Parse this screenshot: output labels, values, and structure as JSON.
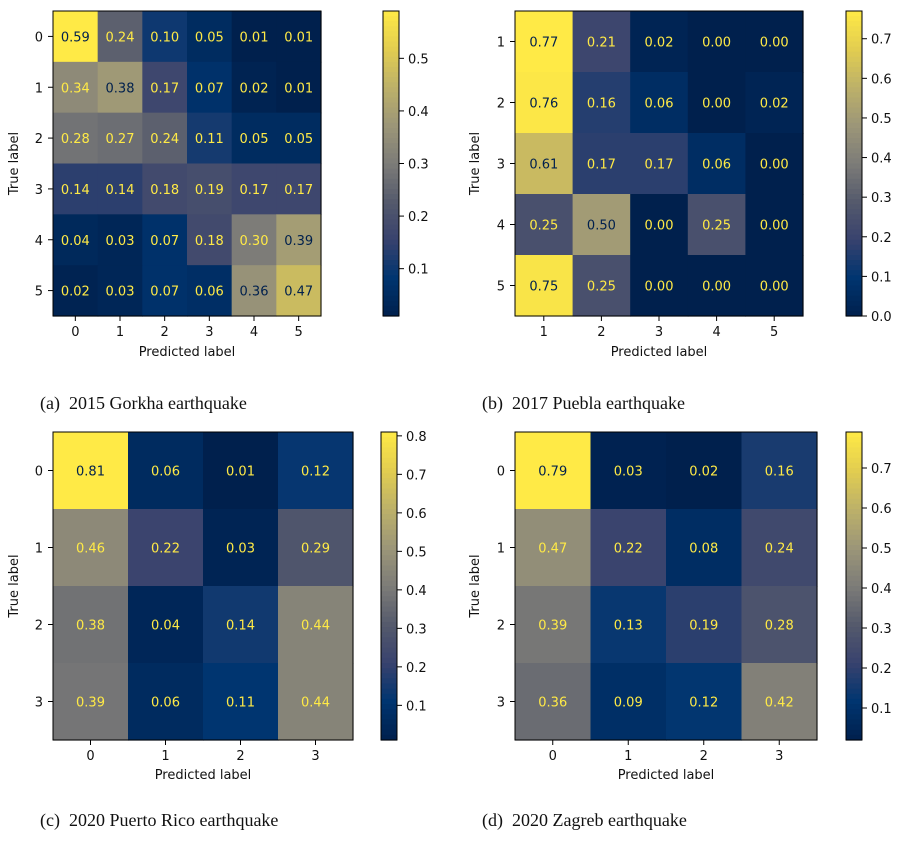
{
  "chart_data": [
    {
      "type": "heatmap",
      "xlabel": "Predicted label",
      "ylabel": "True label",
      "x_ticks": [
        "0",
        "1",
        "2",
        "3",
        "4",
        "5"
      ],
      "y_ticks": [
        "0",
        "1",
        "2",
        "3",
        "4",
        "5"
      ],
      "values": [
        [
          0.59,
          0.24,
          0.1,
          0.05,
          0.01,
          0.01
        ],
        [
          0.34,
          0.38,
          0.17,
          0.07,
          0.02,
          0.01
        ],
        [
          0.28,
          0.27,
          0.24,
          0.11,
          0.05,
          0.05
        ],
        [
          0.14,
          0.14,
          0.18,
          0.19,
          0.17,
          0.17
        ],
        [
          0.04,
          0.03,
          0.07,
          0.18,
          0.3,
          0.39
        ],
        [
          0.02,
          0.03,
          0.07,
          0.06,
          0.36,
          0.47
        ]
      ],
      "cell_labels": [
        [
          "0.59",
          "0.24",
          "0.10",
          "0.05",
          "0.01",
          "0.01"
        ],
        [
          "0.34",
          "0.38",
          "0.17",
          "0.07",
          "0.02",
          "0.01"
        ],
        [
          "0.28",
          "0.27",
          "0.24",
          "0.11",
          "0.05",
          "0.05"
        ],
        [
          "0.14",
          "0.14",
          "0.18",
          "0.19",
          "0.17",
          "0.17"
        ],
        [
          "0.04",
          "0.03",
          "0.07",
          "0.18",
          "0.30",
          "0.39"
        ],
        [
          "0.02",
          "0.03",
          "0.07",
          "0.06",
          "0.36",
          "0.47"
        ]
      ],
      "colorbar": {
        "range": [
          0.01,
          0.59
        ],
        "ticks": [
          0.1,
          0.2,
          0.3,
          0.4,
          0.5
        ],
        "tick_labels": [
          "0.1",
          "0.2",
          "0.3",
          "0.4",
          "0.5"
        ]
      },
      "colormap": "cividis",
      "caption": "(a)  2015 Gorkha earthquake"
    },
    {
      "type": "heatmap",
      "xlabel": "Predicted label",
      "ylabel": "True label",
      "x_ticks": [
        "1",
        "2",
        "3",
        "4",
        "5"
      ],
      "y_ticks": [
        "1",
        "2",
        "3",
        "4",
        "5"
      ],
      "values": [
        [
          0.77,
          0.21,
          0.02,
          0.0,
          0.0
        ],
        [
          0.76,
          0.16,
          0.06,
          0.0,
          0.02
        ],
        [
          0.61,
          0.17,
          0.17,
          0.06,
          0.0
        ],
        [
          0.25,
          0.5,
          0.0,
          0.25,
          0.0
        ],
        [
          0.75,
          0.25,
          0.0,
          0.0,
          0.0
        ]
      ],
      "cell_labels": [
        [
          "0.77",
          "0.21",
          "0.02",
          "0.00",
          "0.00"
        ],
        [
          "0.76",
          "0.16",
          "0.06",
          "0.00",
          "0.02"
        ],
        [
          "0.61",
          "0.17",
          "0.17",
          "0.06",
          "0.00"
        ],
        [
          "0.25",
          "0.50",
          "0.00",
          "0.25",
          "0.00"
        ],
        [
          "0.75",
          "0.25",
          "0.00",
          "0.00",
          "0.00"
        ]
      ],
      "colorbar": {
        "range": [
          0.0,
          0.77
        ],
        "ticks": [
          0.0,
          0.1,
          0.2,
          0.3,
          0.4,
          0.5,
          0.6,
          0.7
        ],
        "tick_labels": [
          "0.0",
          "0.1",
          "0.2",
          "0.3",
          "0.4",
          "0.5",
          "0.6",
          "0.7"
        ]
      },
      "colormap": "cividis",
      "caption": "(b)  2017 Puebla earthquake"
    },
    {
      "type": "heatmap",
      "xlabel": "Predicted label",
      "ylabel": "True label",
      "x_ticks": [
        "0",
        "1",
        "2",
        "3"
      ],
      "y_ticks": [
        "0",
        "1",
        "2",
        "3"
      ],
      "values": [
        [
          0.81,
          0.06,
          0.01,
          0.12
        ],
        [
          0.46,
          0.22,
          0.03,
          0.29
        ],
        [
          0.38,
          0.04,
          0.14,
          0.44
        ],
        [
          0.39,
          0.06,
          0.11,
          0.44
        ]
      ],
      "cell_labels": [
        [
          "0.81",
          "0.06",
          "0.01",
          "0.12"
        ],
        [
          "0.46",
          "0.22",
          "0.03",
          "0.29"
        ],
        [
          "0.38",
          "0.04",
          "0.14",
          "0.44"
        ],
        [
          "0.39",
          "0.06",
          "0.11",
          "0.44"
        ]
      ],
      "colorbar": {
        "range": [
          0.01,
          0.81
        ],
        "ticks": [
          0.1,
          0.2,
          0.3,
          0.4,
          0.5,
          0.6,
          0.7,
          0.8
        ],
        "tick_labels": [
          "0.1",
          "0.2",
          "0.3",
          "0.4",
          "0.5",
          "0.6",
          "0.7",
          "0.8"
        ]
      },
      "colormap": "cividis",
      "caption": "(c)  2020 Puerto Rico earthquake"
    },
    {
      "type": "heatmap",
      "xlabel": "Predicted label",
      "ylabel": "True label",
      "x_ticks": [
        "0",
        "1",
        "2",
        "3"
      ],
      "y_ticks": [
        "0",
        "1",
        "2",
        "3"
      ],
      "values": [
        [
          0.79,
          0.03,
          0.02,
          0.16
        ],
        [
          0.47,
          0.22,
          0.08,
          0.24
        ],
        [
          0.39,
          0.13,
          0.19,
          0.28
        ],
        [
          0.36,
          0.09,
          0.12,
          0.42
        ]
      ],
      "cell_labels": [
        [
          "0.79",
          "0.03",
          "0.02",
          "0.16"
        ],
        [
          "0.47",
          "0.22",
          "0.08",
          "0.24"
        ],
        [
          "0.39",
          "0.13",
          "0.19",
          "0.28"
        ],
        [
          "0.36",
          "0.09",
          "0.12",
          "0.42"
        ]
      ],
      "colorbar": {
        "range": [
          0.02,
          0.79
        ],
        "ticks": [
          0.1,
          0.2,
          0.3,
          0.4,
          0.5,
          0.6,
          0.7
        ],
        "tick_labels": [
          "0.1",
          "0.2",
          "0.3",
          "0.4",
          "0.5",
          "0.6",
          "0.7"
        ]
      },
      "colormap": "cividis",
      "caption": "(d)  2020 Zagreb earthquake"
    }
  ]
}
